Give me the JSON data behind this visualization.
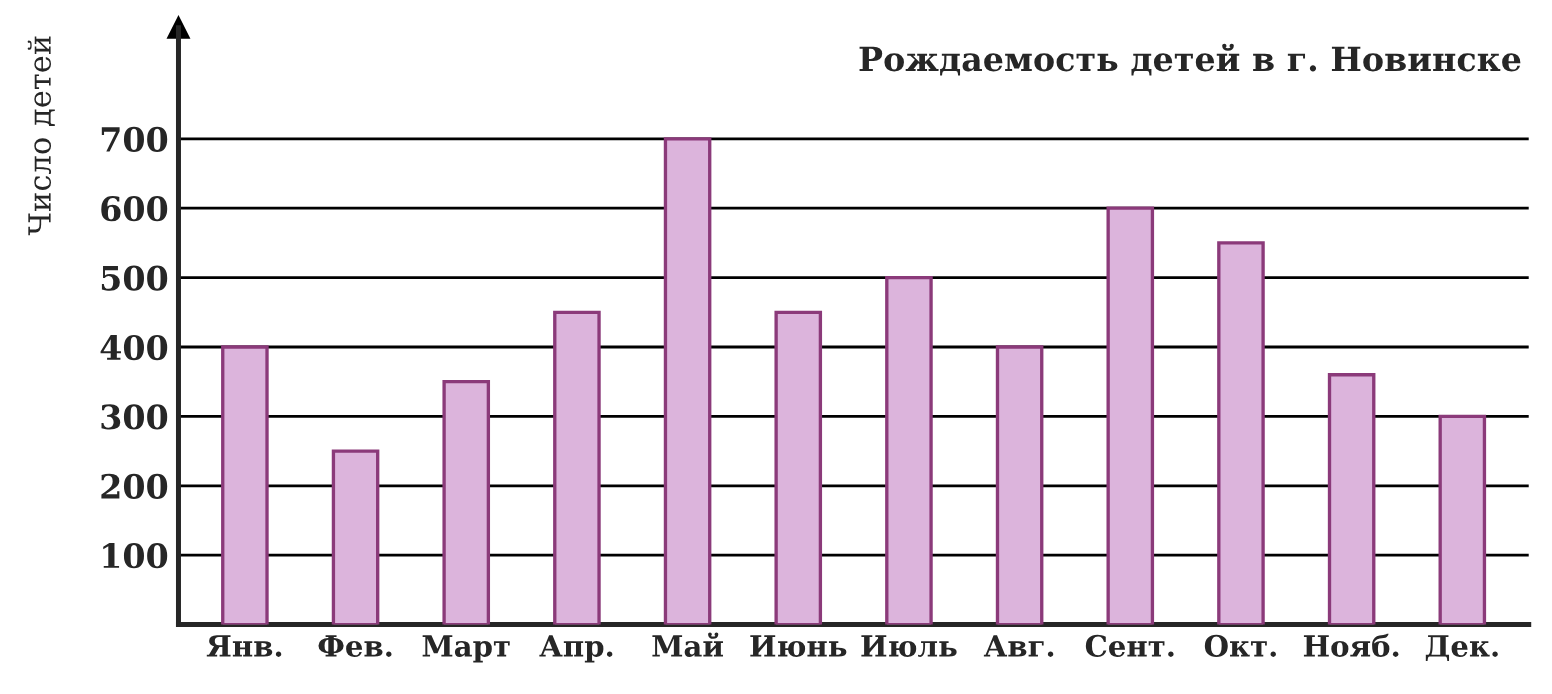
{
  "chart_data": {
    "type": "bar",
    "title": "Рождаемость детей в г. Новинске",
    "ylabel": "Число детей",
    "categories": [
      "Янв.",
      "Фев.",
      "Март",
      "Апр.",
      "Май",
      "Июнь",
      "Июль",
      "Авг.",
      "Сент.",
      "Окт.",
      "Нояб.",
      "Дек."
    ],
    "values": [
      400,
      250,
      350,
      450,
      700,
      450,
      500,
      400,
      600,
      550,
      360,
      300
    ],
    "color": "#dcb4dc",
    "ylim": [
      0,
      860
    ],
    "yticks": [
      100,
      200,
      300,
      400,
      500,
      600,
      700
    ],
    "grid": "y",
    "legend": false
  }
}
